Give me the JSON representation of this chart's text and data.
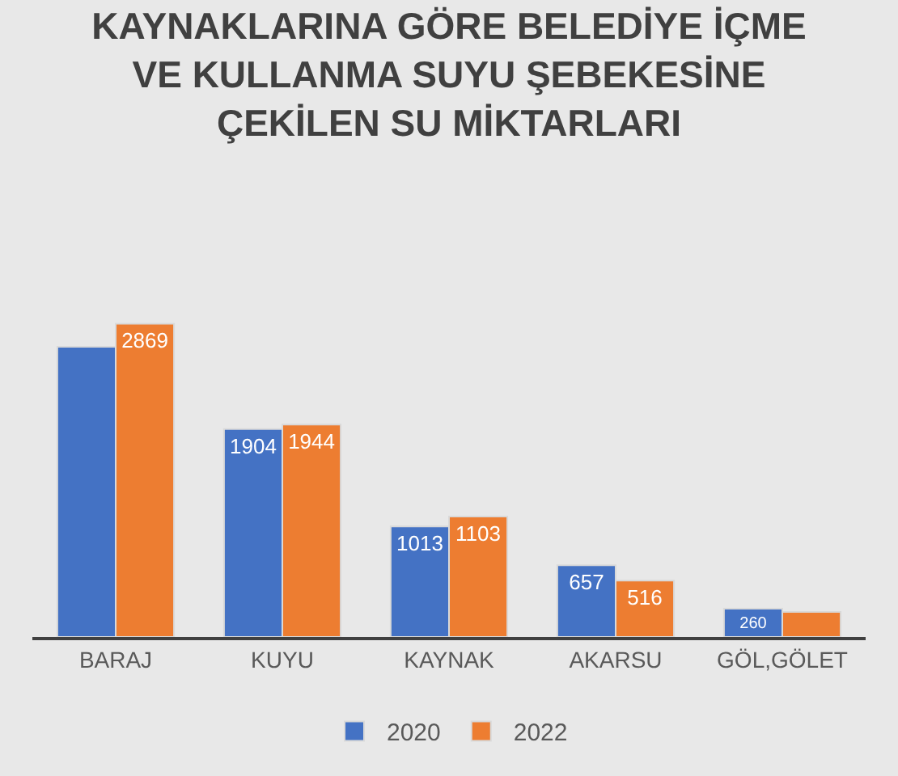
{
  "chart_data": {
    "type": "bar",
    "title": "KAYNAKLARINA GÖRE BELEDİYE İÇME\nVE KULLANMA SUYU ŞEBEKESİNE\nÇEKİLEN SU MİKTARLARI",
    "categories": [
      "BARAJ",
      "KUYU",
      "KAYNAK",
      "AKARSU",
      "GÖL,GÖLET"
    ],
    "series": [
      {
        "name": "2020",
        "color": "#4472c4",
        "values": [
          2658,
          1904,
          1013,
          657,
          260
        ],
        "value_labels": [
          null,
          "1904",
          "1013",
          "657",
          "260"
        ]
      },
      {
        "name": "2022",
        "color": "#ed7d31",
        "values": [
          2869,
          1944,
          1103,
          516,
          230
        ],
        "value_labels": [
          "2869",
          "1944",
          "1103",
          "516",
          null
        ]
      }
    ],
    "tick_labels": "x",
    "legend": "bottom"
  }
}
